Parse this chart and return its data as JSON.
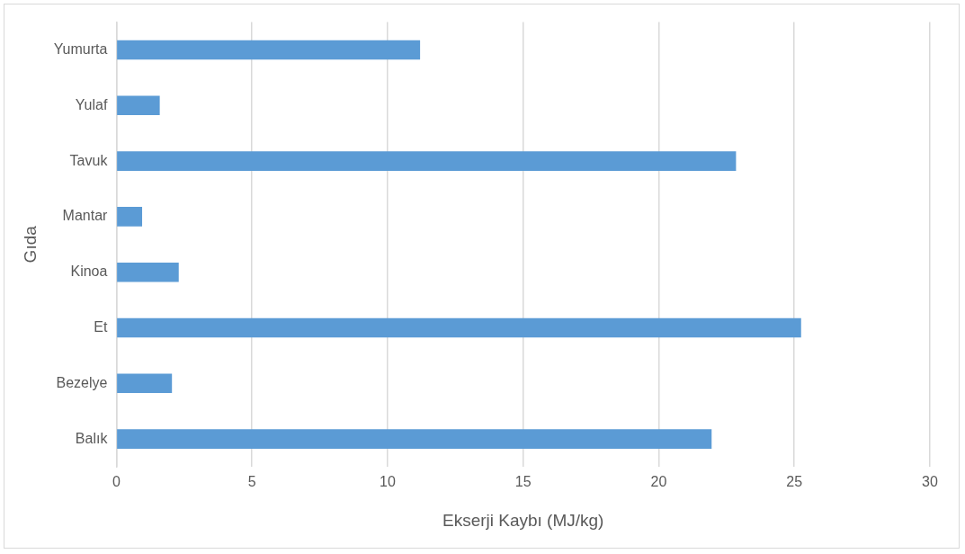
{
  "chart_data": {
    "type": "bar",
    "orientation": "horizontal",
    "xlabel": "Ekserji Kaybı (MJ/kg)",
    "ylabel": "Gıda",
    "categories": [
      "Yumurta",
      "Yulaf",
      "Tavuk",
      "Mantar",
      "Kinoa",
      "Et",
      "Bezelye",
      "Balık"
    ],
    "values": [
      11.2,
      1.6,
      22.85,
      0.95,
      2.3,
      25.25,
      2.05,
      21.95
    ],
    "color": "#5b9bd5",
    "xlim": [
      0,
      30
    ],
    "xticks": [
      0,
      5,
      10,
      15,
      20,
      25,
      30
    ],
    "grid": "x",
    "legend": false
  }
}
